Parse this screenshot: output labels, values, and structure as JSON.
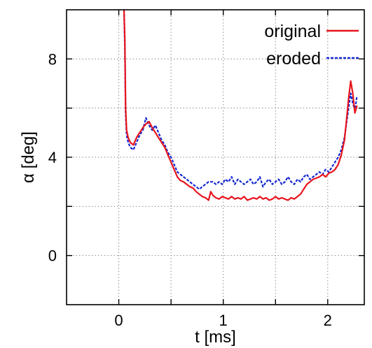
{
  "chart_data": {
    "type": "line",
    "xlabel": "t [ms]",
    "ylabel": "α [deg]",
    "xlim": [
      -0.5,
      2.35
    ],
    "ylim": [
      -2,
      10
    ],
    "xticks": [
      0,
      0.5,
      1,
      1.5,
      2
    ],
    "xtick_labels": [
      "0",
      "",
      "1",
      "",
      "2"
    ],
    "yticks": [
      0,
      2,
      4,
      6,
      8
    ],
    "ytick_labels": [
      "0",
      "",
      "4",
      "",
      "8"
    ],
    "grid": true,
    "legend_position": "top-right",
    "series": [
      {
        "name": "original",
        "color": "#e8141c",
        "dash": "solid",
        "x": [
          0.05,
          0.058,
          0.065,
          0.075,
          0.09,
          0.11,
          0.14,
          0.17,
          0.2,
          0.23,
          0.26,
          0.29,
          0.32,
          0.35,
          0.38,
          0.41,
          0.44,
          0.47,
          0.5,
          0.53,
          0.56,
          0.59,
          0.62,
          0.65,
          0.68,
          0.71,
          0.74,
          0.77,
          0.8,
          0.83,
          0.86,
          0.88,
          0.9,
          0.93,
          0.96,
          0.99,
          1.02,
          1.05,
          1.08,
          1.11,
          1.14,
          1.17,
          1.2,
          1.23,
          1.26,
          1.29,
          1.32,
          1.35,
          1.38,
          1.41,
          1.44,
          1.47,
          1.5,
          1.53,
          1.56,
          1.59,
          1.62,
          1.65,
          1.68,
          1.71,
          1.74,
          1.77,
          1.8,
          1.83,
          1.86,
          1.89,
          1.92,
          1.95,
          1.98,
          2.01,
          2.04,
          2.07,
          2.1,
          2.13,
          2.16,
          2.18,
          2.2,
          2.22,
          2.24,
          2.26,
          2.28
        ],
        "y": [
          10,
          8.8,
          6.0,
          5.1,
          4.8,
          4.6,
          4.5,
          4.8,
          5.0,
          5.2,
          5.35,
          5.45,
          5.2,
          5.0,
          4.8,
          4.6,
          4.4,
          4.1,
          3.8,
          3.5,
          3.2,
          3.05,
          3.0,
          2.9,
          2.8,
          2.75,
          2.6,
          2.5,
          2.4,
          2.35,
          2.25,
          2.6,
          2.45,
          2.35,
          2.3,
          2.4,
          2.35,
          2.3,
          2.4,
          2.3,
          2.35,
          2.3,
          2.4,
          2.25,
          2.3,
          2.35,
          2.3,
          2.4,
          2.3,
          2.35,
          2.25,
          2.3,
          2.4,
          2.3,
          2.35,
          2.3,
          2.25,
          2.35,
          2.3,
          2.4,
          2.5,
          2.7,
          2.9,
          3.0,
          3.1,
          3.15,
          3.2,
          3.3,
          3.2,
          3.35,
          3.4,
          3.5,
          3.7,
          4.1,
          4.7,
          5.5,
          6.4,
          7.1,
          6.6,
          5.8,
          6.1
        ]
      },
      {
        "name": "eroded",
        "color": "#1428d4",
        "dash": "dashed",
        "x": [
          0.05,
          0.058,
          0.065,
          0.075,
          0.09,
          0.11,
          0.14,
          0.17,
          0.2,
          0.23,
          0.26,
          0.29,
          0.32,
          0.35,
          0.38,
          0.41,
          0.44,
          0.47,
          0.5,
          0.53,
          0.56,
          0.59,
          0.62,
          0.65,
          0.68,
          0.71,
          0.74,
          0.77,
          0.8,
          0.83,
          0.86,
          0.9,
          0.93,
          0.96,
          0.99,
          1.02,
          1.05,
          1.08,
          1.11,
          1.14,
          1.17,
          1.2,
          1.23,
          1.26,
          1.29,
          1.32,
          1.35,
          1.38,
          1.41,
          1.44,
          1.47,
          1.5,
          1.53,
          1.56,
          1.59,
          1.62,
          1.65,
          1.68,
          1.71,
          1.74,
          1.77,
          1.8,
          1.83,
          1.86,
          1.89,
          1.92,
          1.95,
          1.98,
          2.01,
          2.04,
          2.07,
          2.1,
          2.13,
          2.16,
          2.18,
          2.2,
          2.22,
          2.24,
          2.26,
          2.28
        ],
        "y": [
          10,
          8.5,
          5.8,
          4.9,
          4.6,
          4.4,
          4.3,
          4.6,
          4.9,
          5.1,
          5.6,
          5.3,
          5.1,
          5.3,
          5.0,
          4.7,
          4.5,
          4.2,
          4.0,
          3.7,
          3.4,
          3.3,
          3.2,
          3.1,
          3.0,
          2.9,
          2.8,
          2.7,
          2.8,
          2.9,
          3.0,
          3.0,
          2.9,
          3.0,
          2.9,
          3.1,
          3.0,
          3.2,
          2.9,
          3.1,
          3.0,
          2.9,
          3.0,
          3.1,
          2.9,
          3.0,
          3.2,
          2.8,
          3.0,
          3.1,
          2.9,
          3.0,
          3.1,
          2.9,
          3.0,
          3.2,
          3.0,
          2.9,
          3.1,
          3.0,
          3.2,
          3.3,
          3.1,
          3.2,
          3.3,
          3.4,
          3.3,
          3.5,
          3.4,
          3.6,
          3.8,
          4.0,
          4.3,
          4.8,
          5.4,
          6.0,
          6.6,
          6.2,
          5.9,
          6.5
        ]
      }
    ]
  }
}
